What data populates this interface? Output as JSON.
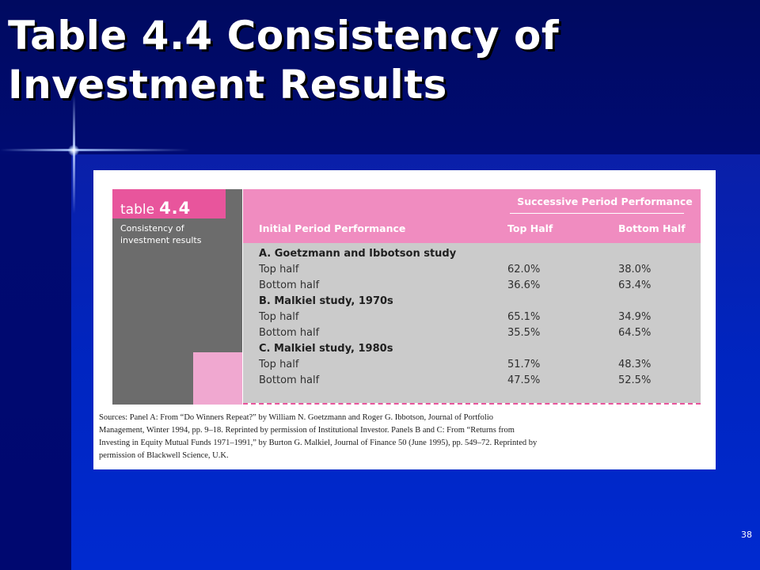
{
  "slide": {
    "title_line1": "Table 4.4 Consistency of",
    "title_line2": "Investment Results",
    "page_number": "38"
  },
  "table": {
    "label_prefix": "table",
    "label_number": "4.4",
    "caption_line1": "Consistency of",
    "caption_line2": "investment results",
    "super_header": "Successive Period Performance",
    "col_initial": "Initial Period Performance",
    "col_top": "Top Half",
    "col_bottom": "Bottom Half",
    "rows": [
      {
        "label": "A. Goetzmann and Ibbotson study",
        "top": "",
        "bottom": ""
      },
      {
        "label": "Top half",
        "top": "62.0%",
        "bottom": "38.0%"
      },
      {
        "label": "Bottom half",
        "top": "36.6%",
        "bottom": "63.4%"
      },
      {
        "label": "B. Malkiel study, 1970s",
        "top": "",
        "bottom": ""
      },
      {
        "label": "Top half",
        "top": "65.1%",
        "bottom": "34.9%"
      },
      {
        "label": "Bottom half",
        "top": "35.5%",
        "bottom": "64.5%"
      },
      {
        "label": "C. Malkiel study, 1980s",
        "top": "",
        "bottom": ""
      },
      {
        "label": "Top half",
        "top": "51.7%",
        "bottom": "48.3%"
      },
      {
        "label": "Bottom half",
        "top": "47.5%",
        "bottom": "52.5%"
      }
    ],
    "source_lines": [
      "Sources: Panel A: From “Do Winners Repeat?” by William N. Goetzmann and Roger G. Ibbotson, Journal of Portfolio",
      "Management, Winter 1994, pp. 9–18. Reprinted by permission of Institutional Investor. Panels B and C: From “Returns from",
      "Investing in Equity Mutual Funds 1971–1991,” by Burton G. Malkiel, Journal of Finance 50 (June 1995), pp. 549–72. Reprinted by",
      "permission of Blackwell Science, U.K."
    ]
  }
}
